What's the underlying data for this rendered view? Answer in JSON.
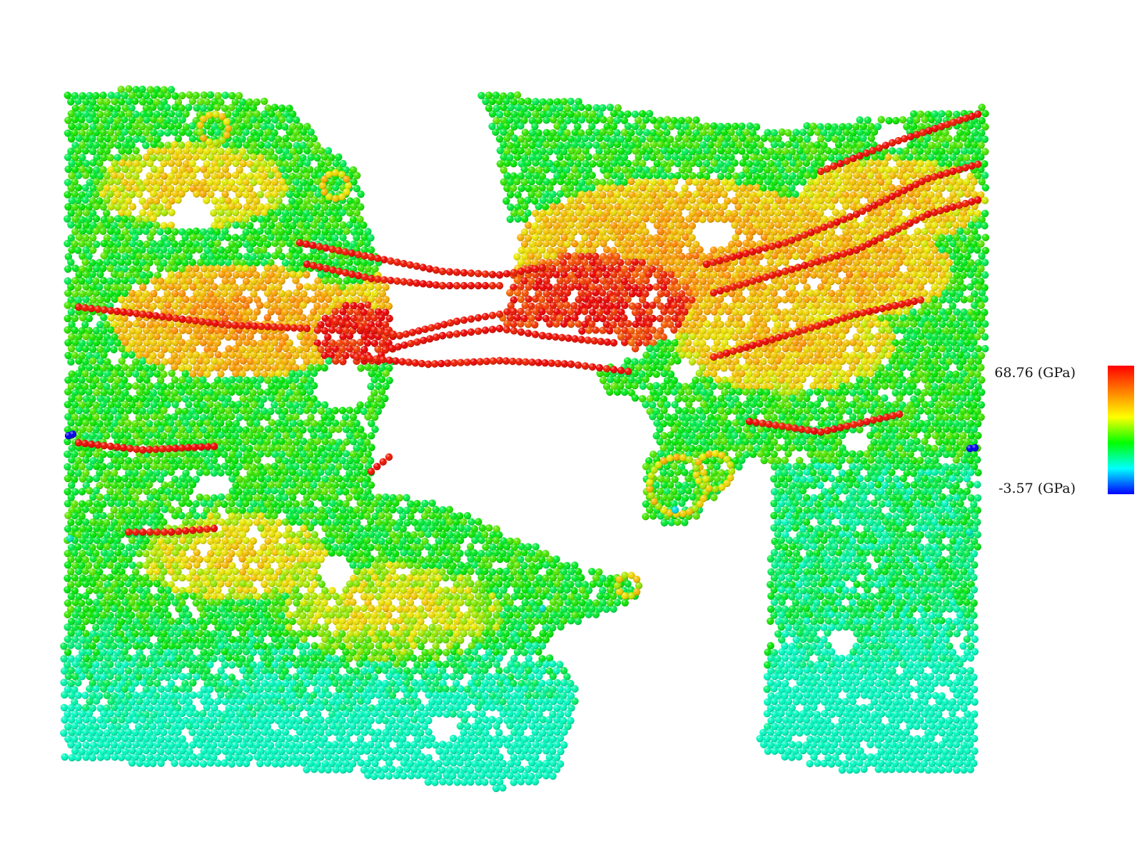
{
  "figure": {
    "type": "atomistic-stress-map",
    "colormap": [
      "#0000ff",
      "#00ffff",
      "#00ff00",
      "#ffff00",
      "#ff8000",
      "#ff0000"
    ]
  },
  "colorbar": {
    "max_label": "68.76 (GPa)",
    "min_label": "-3.57 (GPa)",
    "max_value": 68.76,
    "min_value": -3.57
  }
}
